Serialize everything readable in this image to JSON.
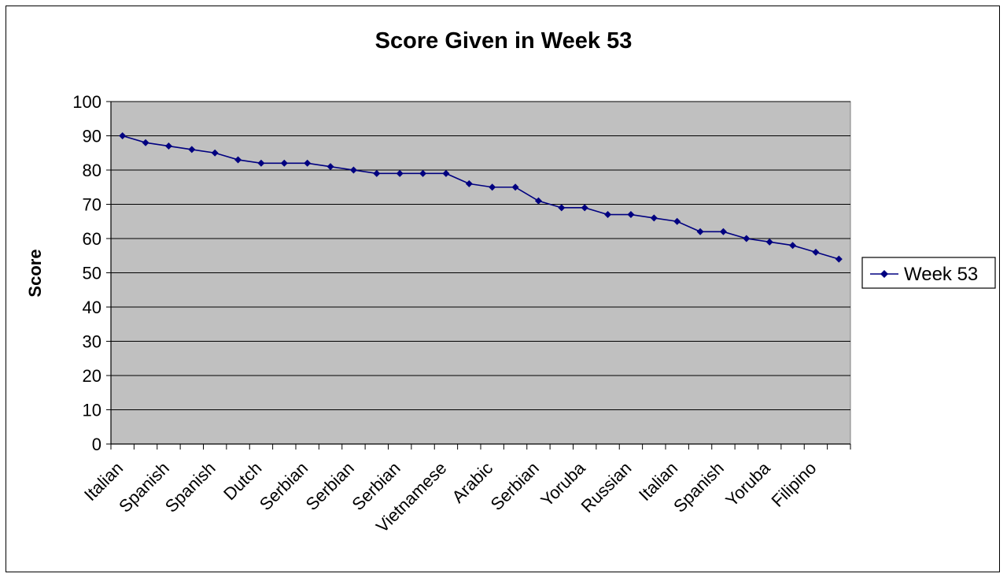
{
  "chart_data": {
    "type": "line",
    "title": "Score Given in Week 53",
    "xlabel": "",
    "ylabel": "Score",
    "ylim": [
      0,
      100
    ],
    "yticks": [
      0,
      10,
      20,
      30,
      40,
      50,
      60,
      70,
      80,
      90,
      100
    ],
    "grid": true,
    "legend_position": "right",
    "plot_background": "#c0c0c0",
    "line_color": "#000080",
    "x_tick_labels": [
      "Italian",
      "Spanish",
      "Spanish",
      "Dutch",
      "Serbian",
      "Serbian",
      "Serbian",
      "Vietnamese",
      "Arabic",
      "Serbian",
      "Yoruba",
      "Russian",
      "Italian",
      "Spanish",
      "Yoruba",
      "Filipino"
    ],
    "series": [
      {
        "name": "Week 53",
        "values": [
          90,
          88,
          87,
          86,
          85,
          83,
          82,
          82,
          82,
          81,
          80,
          79,
          79,
          79,
          79,
          76,
          75,
          75,
          71,
          69,
          69,
          67,
          67,
          66,
          65,
          62,
          62,
          60,
          59,
          58,
          56,
          54
        ]
      }
    ]
  }
}
